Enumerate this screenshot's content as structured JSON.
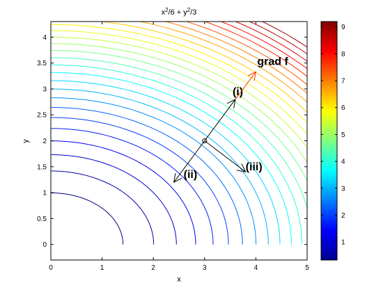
{
  "chart_data": {
    "type": "contour",
    "title": {
      "x": "x",
      "x_exp": "2",
      "mid": "/6 + y",
      "y_exp": "2",
      "tail": "/3"
    },
    "xlabel": "x",
    "ylabel": "y",
    "xlim": [
      0,
      5
    ],
    "ylim": [
      -0.3,
      4.3
    ],
    "xticks": [
      0,
      1,
      2,
      3,
      4,
      5
    ],
    "yticks": [
      0,
      0.5,
      1,
      1.5,
      2,
      2.5,
      3,
      3.5,
      4
    ],
    "contour_levels": [
      0.33,
      0.67,
      1.0,
      1.33,
      1.67,
      2.0,
      2.33,
      2.67,
      3.0,
      3.33,
      3.67,
      4.0,
      4.33,
      4.67,
      5.0,
      5.33,
      5.67,
      6.0,
      6.33,
      6.67,
      7.0,
      7.33,
      7.67,
      8.0,
      8.33,
      8.67,
      9.0
    ],
    "colorbar": {
      "min": 0.33,
      "max": 9.2,
      "ticks": [
        1,
        2,
        3,
        4,
        5,
        6,
        7,
        8,
        9
      ],
      "colormap": "jet"
    },
    "point": {
      "x": 3,
      "y": 2
    },
    "arrows": [
      {
        "label": "(i)",
        "tip": [
          3.6,
          2.8
        ],
        "color": "#000000"
      },
      {
        "label": "grad f",
        "tip": [
          4.0,
          3.33
        ],
        "color": "#ff3300"
      },
      {
        "label": "(ii)",
        "tip": [
          2.4,
          1.2
        ],
        "color": "#000000"
      },
      {
        "label": "(iii)",
        "tip": [
          3.8,
          1.4
        ],
        "color": "#000000"
      }
    ],
    "annotations": [
      "grad f",
      "(i)",
      "(ii)",
      "(iii)"
    ]
  }
}
